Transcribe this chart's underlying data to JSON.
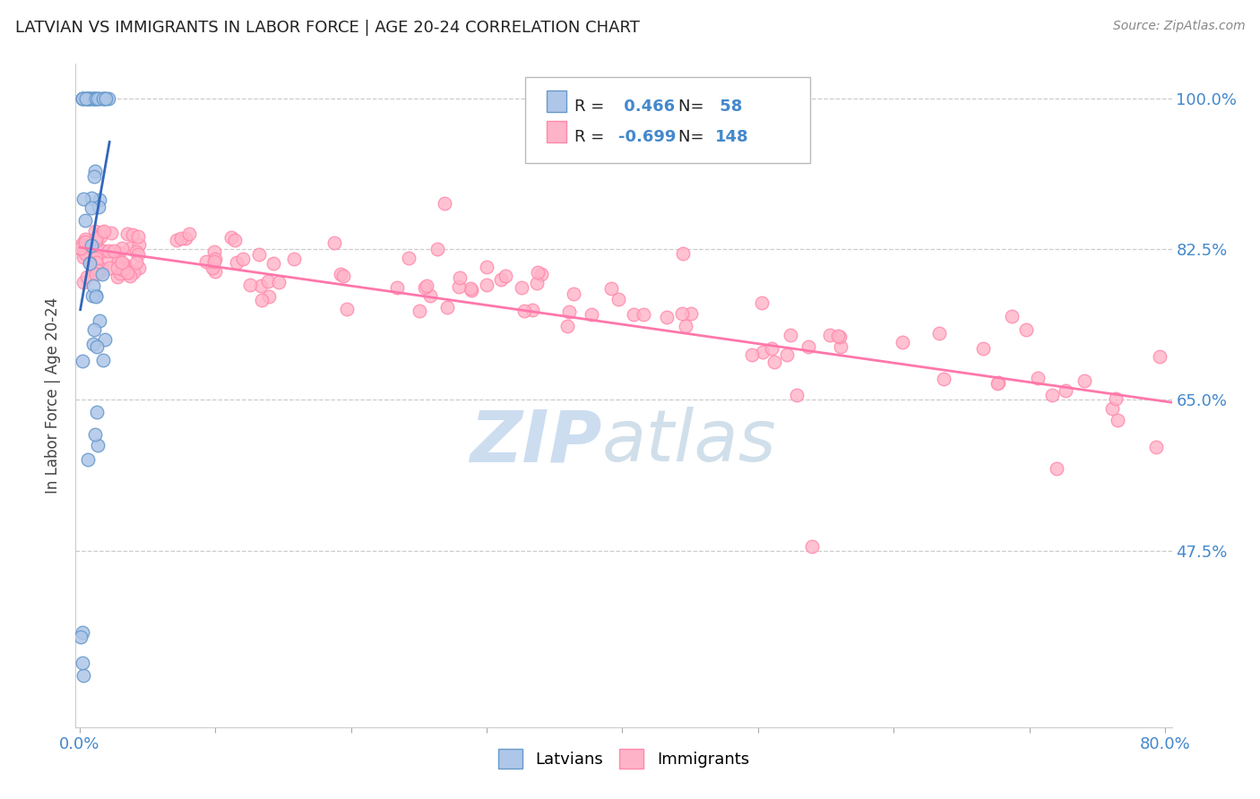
{
  "title": "LATVIAN VS IMMIGRANTS IN LABOR FORCE | AGE 20-24 CORRELATION CHART",
  "source": "Source: ZipAtlas.com",
  "ylabel": "In Labor Force | Age 20-24",
  "ytick_labels": [
    "100.0%",
    "82.5%",
    "65.0%",
    "47.5%"
  ],
  "ytick_values": [
    1.0,
    0.825,
    0.65,
    0.475
  ],
  "xlim": [
    -0.003,
    0.805
  ],
  "ylim": [
    0.27,
    1.04
  ],
  "legend_r_latvian": "0.466",
  "legend_n_latvian": "58",
  "legend_r_immigrant": "-0.699",
  "legend_n_immigrant": "148",
  "latvian_color": "#aec6e8",
  "latvian_edge": "#6699cc",
  "latvian_line_color": "#3366bb",
  "immigrant_color": "#ffb3c8",
  "immigrant_edge": "#ff88aa",
  "immigrant_line_color": "#ff77aa",
  "background_color": "#ffffff",
  "title_color": "#222222",
  "axis_label_color": "#4488cc",
  "grid_color": "#cccccc",
  "watermark_zip_color": "#ccddf0",
  "watermark_atlas_color": "#b8cfe0"
}
